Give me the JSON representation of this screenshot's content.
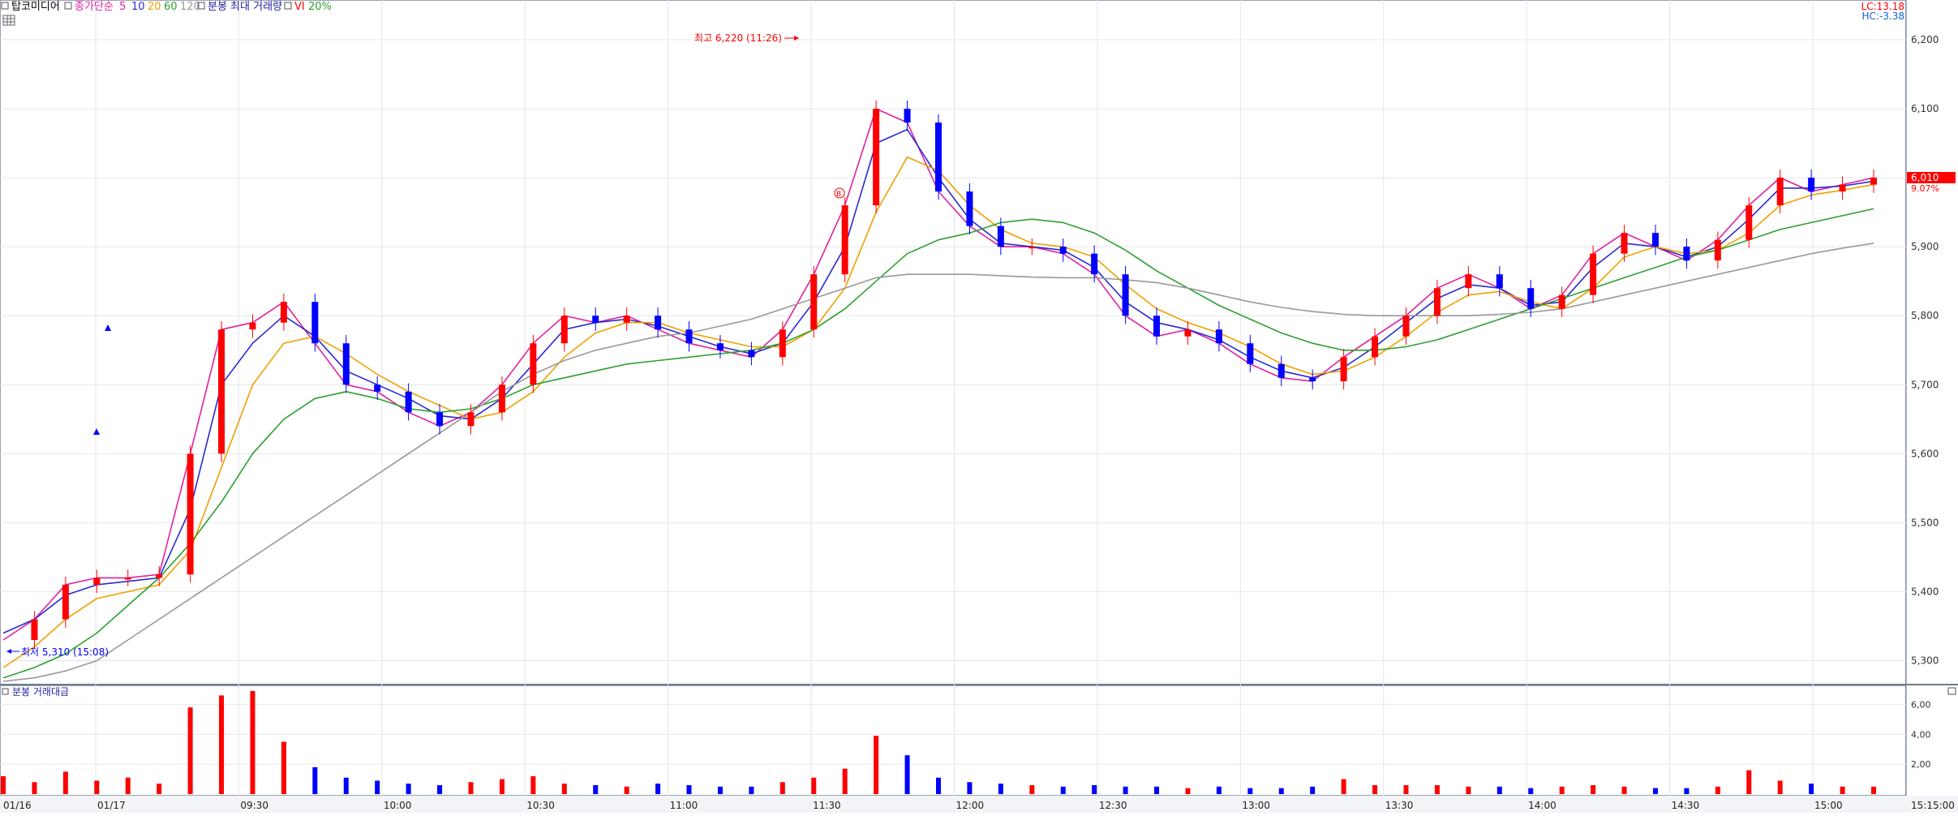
{
  "header": {
    "stock_name": "탑코미디어",
    "price_label": "종가단순",
    "ma_periods": [
      "5",
      "10",
      "20",
      "60",
      "120"
    ],
    "volume_label": "분봉 최대 거래량",
    "vi_label": "VI",
    "vi_pct": "20%",
    "lc": "LC:13.18",
    "hc": "HC:-3.38"
  },
  "volume_panel": {
    "title": "분봉 거래대금"
  },
  "annotations": {
    "high_label": "최고 6,220 (11:26)",
    "low_label": "최저 5,310 (15:08)",
    "current_price": "6,010",
    "current_pct": "9.07%"
  },
  "colors": {
    "up": "#ff0000",
    "down": "#0000ff",
    "ma5": "#e020a0",
    "ma10": "#2a2ad0",
    "ma20": "#f0a000",
    "ma60": "#2ea02e",
    "ma120": "#999999"
  },
  "chart_data": [
    {
      "type": "candlestick",
      "title": "",
      "y_tick_labels": [
        "6,200",
        "6,100",
        "6,000",
        "5,900",
        "5,800",
        "5,700",
        "5,600",
        "5,500",
        "5,400",
        "5,300"
      ],
      "y_ticks": [
        6200,
        6100,
        6000,
        5900,
        5800,
        5700,
        5600,
        5500,
        5400,
        5300
      ],
      "ylim": [
        5270,
        6240
      ],
      "x_tick_labels": [
        "01/16",
        "01/17",
        "09:30",
        "10:00",
        "10:30",
        "11:00",
        "11:30",
        "12:00",
        "12:30",
        "13:00",
        "13:30",
        "14:00",
        "14:30",
        "15:00",
        "15:15:00"
      ],
      "grid": true,
      "high": 6220,
      "low": 5310,
      "last": 6010,
      "series": [
        {
          "name": "5",
          "values": [
            5330,
            5360,
            5410,
            5420,
            5420,
            5425,
            5600,
            5780,
            5790,
            5820,
            5760,
            5700,
            5690,
            5660,
            5640,
            5660,
            5700,
            5760,
            5800,
            5790,
            5800,
            5780,
            5760,
            5750,
            5740,
            5780,
            5860,
            5960,
            6100,
            6080,
            5980,
            5930,
            5900,
            5900,
            5890,
            5860,
            5800,
            5770,
            5780,
            5760,
            5730,
            5710,
            5705,
            5740,
            5770,
            5800,
            5840,
            5860,
            5840,
            5810,
            5830,
            5890,
            5920,
            5900,
            5880,
            5910,
            5960,
            6000,
            5980,
            5990,
            6000
          ]
        },
        {
          "name": "10",
          "values": [
            5340,
            5360,
            5395,
            5410,
            5415,
            5420,
            5520,
            5700,
            5760,
            5800,
            5770,
            5720,
            5700,
            5680,
            5655,
            5650,
            5680,
            5730,
            5780,
            5790,
            5795,
            5785,
            5770,
            5755,
            5745,
            5760,
            5820,
            5900,
            6050,
            6070,
            6000,
            5940,
            5905,
            5900,
            5895,
            5870,
            5820,
            5790,
            5780,
            5765,
            5740,
            5720,
            5710,
            5725,
            5755,
            5790,
            5825,
            5845,
            5840,
            5815,
            5820,
            5870,
            5905,
            5900,
            5885,
            5900,
            5940,
            5985,
            5985,
            5988,
            5995
          ]
        },
        {
          "name": "20",
          "values": [
            5290,
            5320,
            5360,
            5390,
            5400,
            5410,
            5460,
            5580,
            5700,
            5760,
            5770,
            5745,
            5715,
            5690,
            5670,
            5650,
            5660,
            5690,
            5740,
            5775,
            5790,
            5790,
            5775,
            5765,
            5755,
            5755,
            5780,
            5840,
            5950,
            6030,
            6010,
            5960,
            5925,
            5905,
            5900,
            5885,
            5845,
            5810,
            5790,
            5775,
            5755,
            5730,
            5715,
            5720,
            5740,
            5770,
            5805,
            5830,
            5835,
            5820,
            5810,
            5840,
            5885,
            5900,
            5890,
            5895,
            5920,
            5960,
            5975,
            5982,
            5990
          ]
        },
        {
          "name": "60",
          "values": [
            5275,
            5290,
            5310,
            5340,
            5380,
            5420,
            5470,
            5530,
            5600,
            5650,
            5680,
            5690,
            5680,
            5665,
            5660,
            5665,
            5680,
            5700,
            5710,
            5720,
            5730,
            5735,
            5740,
            5745,
            5750,
            5760,
            5780,
            5810,
            5850,
            5890,
            5910,
            5920,
            5935,
            5940,
            5935,
            5920,
            5895,
            5865,
            5840,
            5815,
            5795,
            5775,
            5760,
            5750,
            5750,
            5755,
            5765,
            5780,
            5795,
            5810,
            5825,
            5840,
            5855,
            5870,
            5885,
            5895,
            5910,
            5925,
            5935,
            5945,
            5955
          ]
        },
        {
          "name": "120",
          "values": [
            5270,
            5275,
            5285,
            5300,
            5330,
            5360,
            5390,
            5420,
            5450,
            5480,
            5510,
            5540,
            5570,
            5600,
            5630,
            5660,
            5690,
            5715,
            5735,
            5750,
            5760,
            5770,
            5775,
            5785,
            5795,
            5810,
            5825,
            5840,
            5855,
            5860,
            5860,
            5860,
            5858,
            5856,
            5855,
            5855,
            5852,
            5848,
            5840,
            5830,
            5820,
            5812,
            5806,
            5802,
            5800,
            5800,
            5800,
            5800,
            5802,
            5805,
            5810,
            5820,
            5830,
            5840,
            5850,
            5860,
            5870,
            5880,
            5890,
            5898,
            5905
          ]
        }
      ]
    },
    {
      "type": "bar",
      "title": "분봉 거래대금",
      "y_tick_labels": [
        "6,00",
        "4,00",
        "2,00"
      ],
      "y_ticks": [
        6,
        4,
        2
      ],
      "ylim": [
        0,
        7
      ],
      "values": [
        1.2,
        0.8,
        1.5,
        0.9,
        1.1,
        0.7,
        5.8,
        6.6,
        6.9,
        3.5,
        1.8,
        1.1,
        0.9,
        0.7,
        0.6,
        0.8,
        1.0,
        1.2,
        0.7,
        0.6,
        0.5,
        0.7,
        0.6,
        0.5,
        0.5,
        0.8,
        1.1,
        1.7,
        3.9,
        2.6,
        1.1,
        0.8,
        0.7,
        0.6,
        0.5,
        0.6,
        0.5,
        0.5,
        0.4,
        0.5,
        0.4,
        0.4,
        0.5,
        1.0,
        0.6,
        0.6,
        0.6,
        0.5,
        0.5,
        0.4,
        0.5,
        0.6,
        0.5,
        0.4,
        0.4,
        0.5,
        1.6,
        0.9,
        0.7,
        0.5,
        0.5
      ]
    }
  ]
}
